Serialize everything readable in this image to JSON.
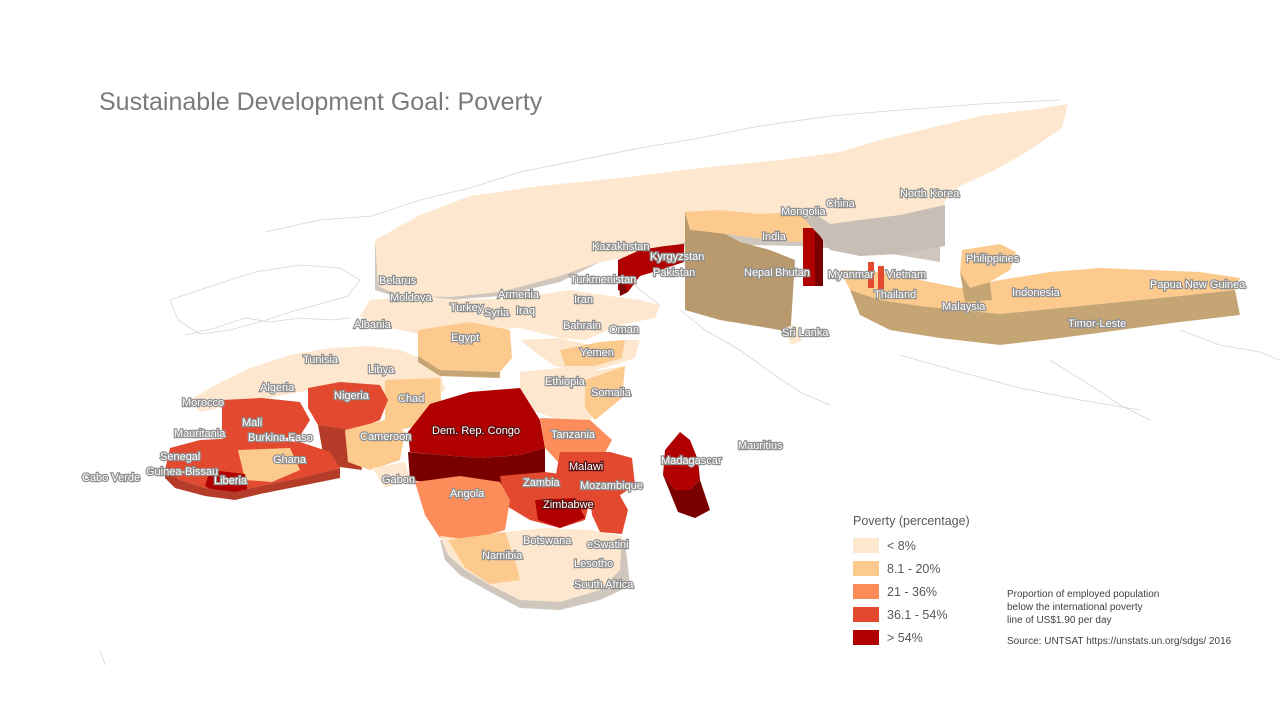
{
  "title": "Sustainable Development Goal: Poverty",
  "legend": {
    "title": "Poverty (percentage)",
    "items": [
      {
        "label": "< 8%",
        "color": "#fde8cf"
      },
      {
        "label": "8.1 - 20%",
        "color": "#fdca8d"
      },
      {
        "label": "21 - 36%",
        "color": "#fc8c5a"
      },
      {
        "label": "36.1 - 54%",
        "color": "#e2492f"
      },
      {
        "label": "> 54%",
        "color": "#b00000"
      }
    ]
  },
  "note": {
    "line1": "Proportion of employed population",
    "line2": "below the international poverty",
    "line3": "line of US$1.90 per day"
  },
  "source": "Source: UNTSAT https://unstats.un.org/sdgs/ 2016",
  "countries": {
    "north_korea": "North Korea",
    "china": "China",
    "mongolia": "Mongolia",
    "india": "India",
    "kazakhstan": "Kazakhstan",
    "kyrgyzstan": "Kyrgyzstan",
    "pakistan": "Pakistan",
    "turkmenistan": "Turkmenistan",
    "nepal": "Nepal",
    "bhutan": "Bhutan",
    "myanmar": "Myanmar",
    "vietnam": "Vietnam",
    "thailand": "Thailand",
    "philippines": "Philippines",
    "malaysia": "Malaysia",
    "indonesia": "Indonesia",
    "papua_new_guinea": "Papua New Guinea",
    "timor_leste": "Timor-Leste",
    "sri_lanka": "Sri Lanka",
    "belarus": "Belarus",
    "moldova": "Moldova",
    "turkey": "Turkey",
    "syria": "Syria",
    "armenia": "Armenia",
    "iran": "Iran",
    "iraq": "Iraq",
    "albania": "Albania",
    "egypt": "Egypt",
    "bahrain": "Bahrain",
    "oman": "Oman",
    "yemen": "Yemen",
    "ethiopia": "Ethiopia",
    "somalia": "Somalia",
    "tunisia": "Tunisia",
    "libya": "Libya",
    "algeria": "Algeria",
    "morocco": "Morocco",
    "chad": "Chad",
    "nigeria": "Nigeria",
    "mali": "Mali",
    "mauritania": "Mauritania",
    "burkina_faso": "Burkina Faso",
    "senegal": "Senegal",
    "guinea_bissau": "Guinea-Bissau",
    "cabo_verde": "Cabo Verde",
    "ghana": "Ghana",
    "liberia": "Liberia",
    "cameroon": "Cameroon",
    "gabon": "Gabon",
    "dr_congo": "Dem. Rep. Congo",
    "tanzania": "Tanzania",
    "malawi": "Malawi",
    "zambia": "Zambia",
    "mozambique": "Mozambique",
    "zimbabwe": "Zimbabwe",
    "angola": "Angola",
    "madagascar": "Madagascar",
    "mauritius": "Mauritius",
    "namibia": "Namibia",
    "botswana": "Botswana",
    "eswatini": "eSwatini",
    "lesotho": "Lesotho",
    "south_africa": "South Africa"
  }
}
